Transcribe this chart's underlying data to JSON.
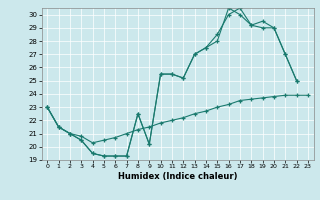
{
  "title": "",
  "xlabel": "Humidex (Indice chaleur)",
  "bg_color": "#cce8ec",
  "line_color": "#1a7a6e",
  "grid_color": "#ffffff",
  "xlim": [
    -0.5,
    23.5
  ],
  "ylim": [
    19,
    30.5
  ],
  "yticks": [
    19,
    20,
    21,
    22,
    23,
    24,
    25,
    26,
    27,
    28,
    29,
    30
  ],
  "xticks": [
    0,
    1,
    2,
    3,
    4,
    5,
    6,
    7,
    8,
    9,
    10,
    11,
    12,
    13,
    14,
    15,
    16,
    17,
    18,
    19,
    20,
    21,
    22,
    23
  ],
  "s1_x": [
    0,
    1,
    2,
    3,
    4,
    5,
    6,
    7,
    8,
    9,
    10,
    11,
    12,
    13,
    14,
    15,
    16,
    17,
    18,
    19,
    20,
    21,
    22
  ],
  "s1_y": [
    23,
    21.5,
    21,
    20.5,
    19.5,
    19.3,
    19.3,
    19.3,
    22.5,
    20.2,
    25.5,
    25.5,
    25.2,
    27.0,
    27.5,
    28.0,
    30.5,
    30.0,
    29.2,
    29.0,
    29.0,
    27.0,
    25.0
  ],
  "s2_x": [
    0,
    1,
    2,
    3,
    4,
    5,
    6,
    7,
    8,
    9,
    10,
    11,
    12,
    13,
    14,
    15,
    16,
    17,
    18,
    19,
    20,
    21,
    22
  ],
  "s2_y": [
    23,
    21.5,
    21,
    20.5,
    19.5,
    19.3,
    19.3,
    19.3,
    22.5,
    20.2,
    25.5,
    25.5,
    25.2,
    27.0,
    27.5,
    28.5,
    30.0,
    30.5,
    29.2,
    29.5,
    29.0,
    27.0,
    25.0
  ],
  "s3_x": [
    0,
    1,
    2,
    3,
    4,
    5,
    6,
    7,
    8,
    9,
    10,
    11,
    12,
    13,
    14,
    15,
    16,
    17,
    18,
    19,
    20,
    21,
    22,
    23
  ],
  "s3_y": [
    23,
    21.5,
    21.0,
    20.8,
    20.3,
    20.5,
    20.7,
    21.0,
    21.3,
    21.5,
    21.8,
    22.0,
    22.2,
    22.5,
    22.7,
    23.0,
    23.2,
    23.5,
    23.6,
    23.7,
    23.8,
    23.9,
    23.9,
    23.9
  ]
}
